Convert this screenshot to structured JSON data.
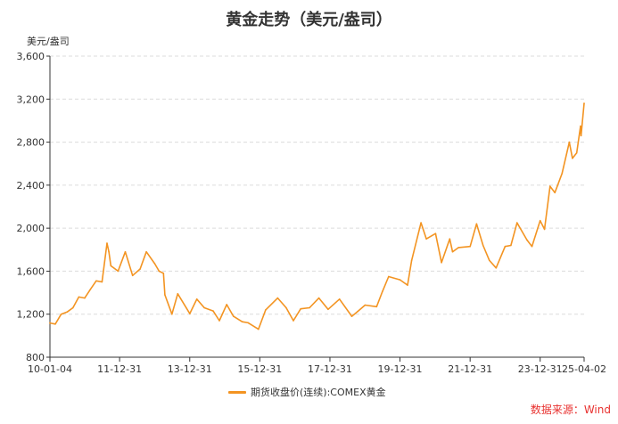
{
  "chart_data": {
    "type": "line",
    "title": "黄金走势（美元/盎司）",
    "ylabel": "美元/盎司",
    "xlabel": "",
    "ylim": [
      800,
      3600
    ],
    "yticks": [
      "800",
      "1,200",
      "1,600",
      "2,000",
      "2,400",
      "2,800",
      "3,200",
      "3,600"
    ],
    "ytick_values": [
      800,
      1200,
      1600,
      2000,
      2400,
      2800,
      3200,
      3600
    ],
    "xlim": [
      "2010-01-04",
      "2025-04-02"
    ],
    "xticks": [
      {
        "label": "10-01-04",
        "date": "2010-01-04"
      },
      {
        "label": "11-12-31",
        "date": "2011-12-31"
      },
      {
        "label": "13-12-31",
        "date": "2013-12-31"
      },
      {
        "label": "15-12-31",
        "date": "2015-12-31"
      },
      {
        "label": "17-12-31",
        "date": "2017-12-31"
      },
      {
        "label": "19-12-31",
        "date": "2019-12-31"
      },
      {
        "label": "21-12-31",
        "date": "2021-12-31"
      },
      {
        "label": "23-12-31",
        "date": "2023-12-31"
      },
      {
        "label": "25-04-02",
        "date": "2025-04-02"
      }
    ],
    "grid": "horizontal-dashed",
    "legend_position": "bottom-center",
    "series": [
      {
        "name": "期货收盘价(连续):COMEX黄金",
        "color": "#F39422",
        "x": [
          "2010-01-04",
          "2010-03-01",
          "2010-05-01",
          "2010-07-01",
          "2010-09-01",
          "2010-11-01",
          "2011-01-01",
          "2011-03-01",
          "2011-05-01",
          "2011-07-01",
          "2011-08-22",
          "2011-09-10",
          "2011-10-01",
          "2011-12-15",
          "2012-02-28",
          "2012-05-15",
          "2012-08-01",
          "2012-10-05",
          "2012-12-31",
          "2013-02-15",
          "2013-04-01",
          "2013-04-16",
          "2013-06-28",
          "2013-08-28",
          "2013-12-31",
          "2014-03-15",
          "2014-06-01",
          "2014-09-01",
          "2014-11-05",
          "2015-01-20",
          "2015-04-01",
          "2015-07-01",
          "2015-09-01",
          "2015-12-17",
          "2016-03-01",
          "2016-07-05",
          "2016-10-01",
          "2016-12-15",
          "2017-03-01",
          "2017-06-01",
          "2017-09-07",
          "2017-12-12",
          "2018-04-10",
          "2018-08-16",
          "2018-10-15",
          "2019-01-01",
          "2019-05-01",
          "2019-07-01",
          "2019-09-04",
          "2019-12-31",
          "2020-03-19",
          "2020-05-01",
          "2020-08-06",
          "2020-10-01",
          "2021-01-05",
          "2021-03-08",
          "2021-06-01",
          "2021-07-01",
          "2021-09-01",
          "2021-12-31",
          "2022-03-08",
          "2022-05-15",
          "2022-07-20",
          "2022-09-28",
          "2022-12-31",
          "2023-03-01",
          "2023-05-04",
          "2023-08-15",
          "2023-10-06",
          "2023-12-31",
          "2024-02-14",
          "2024-04-12",
          "2024-06-01",
          "2024-08-15",
          "2024-10-30",
          "2024-12-01",
          "2025-01-15",
          "2025-02-24",
          "2025-03-01",
          "2025-04-02"
        ],
        "values": [
          1118,
          1108,
          1200,
          1220,
          1260,
          1360,
          1350,
          1430,
          1510,
          1500,
          1860,
          1780,
          1650,
          1600,
          1780,
          1560,
          1620,
          1780,
          1670,
          1600,
          1580,
          1380,
          1200,
          1390,
          1205,
          1340,
          1260,
          1230,
          1140,
          1290,
          1180,
          1130,
          1120,
          1060,
          1240,
          1350,
          1260,
          1140,
          1250,
          1260,
          1350,
          1245,
          1340,
          1180,
          1225,
          1285,
          1270,
          1410,
          1550,
          1520,
          1470,
          1700,
          2050,
          1900,
          1950,
          1680,
          1900,
          1780,
          1820,
          1830,
          2040,
          1840,
          1700,
          1630,
          1830,
          1840,
          2050,
          1890,
          1830,
          2070,
          1990,
          2390,
          2330,
          2510,
          2800,
          2650,
          2700,
          2950,
          2860,
          3160
        ]
      }
    ]
  },
  "legend": {
    "label": "期货收盘价(连续):COMEX黄金"
  },
  "source": {
    "text": "数据来源：Wind",
    "color": "#E8312F"
  }
}
